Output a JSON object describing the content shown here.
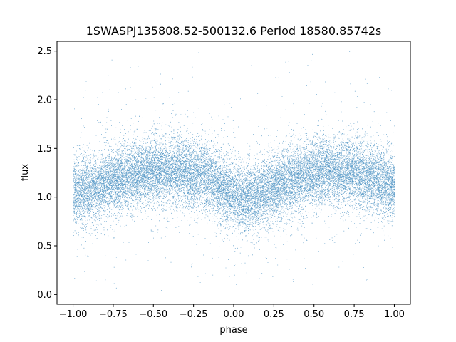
{
  "chart_data": {
    "type": "scatter",
    "title": "1SWASPJ135808.52-500132.6 Period 18580.85742s",
    "xlabel": "phase",
    "ylabel": "flux",
    "xlim": [
      -1.1,
      1.1
    ],
    "ylim": [
      -0.1,
      2.6
    ],
    "xticks": [
      -1.0,
      -0.75,
      -0.5,
      -0.25,
      0.0,
      0.25,
      0.5,
      0.75,
      1.0
    ],
    "xtick_labels": [
      "−1.00",
      "−0.75",
      "−0.50",
      "−0.25",
      "0.00",
      "0.25",
      "0.50",
      "0.75",
      "1.00"
    ],
    "yticks": [
      0.0,
      0.5,
      1.0,
      1.5,
      2.0,
      2.5
    ],
    "ytick_labels": [
      "0.0",
      "0.5",
      "1.0",
      "1.5",
      "2.0",
      "2.5"
    ],
    "grid": false,
    "legend": false,
    "marker_color": "#1f77b4",
    "series": [
      {
        "phase_range": [
          -1.0,
          1.0
        ],
        "mean_flux_profile": {
          "phase": [
            -1.0,
            -0.85,
            -0.75,
            -0.6,
            -0.45,
            -0.3,
            -0.15,
            -0.05,
            0.05,
            0.15,
            0.25,
            0.4,
            0.55,
            0.7,
            0.85,
            1.0
          ],
          "flux": [
            1.05,
            1.1,
            1.17,
            1.24,
            1.28,
            1.27,
            1.2,
            1.08,
            0.98,
            1.02,
            1.1,
            1.2,
            1.27,
            1.27,
            1.2,
            1.1
          ]
        },
        "scatter_sigma": 0.17,
        "point_count": 24000
      }
    ]
  }
}
